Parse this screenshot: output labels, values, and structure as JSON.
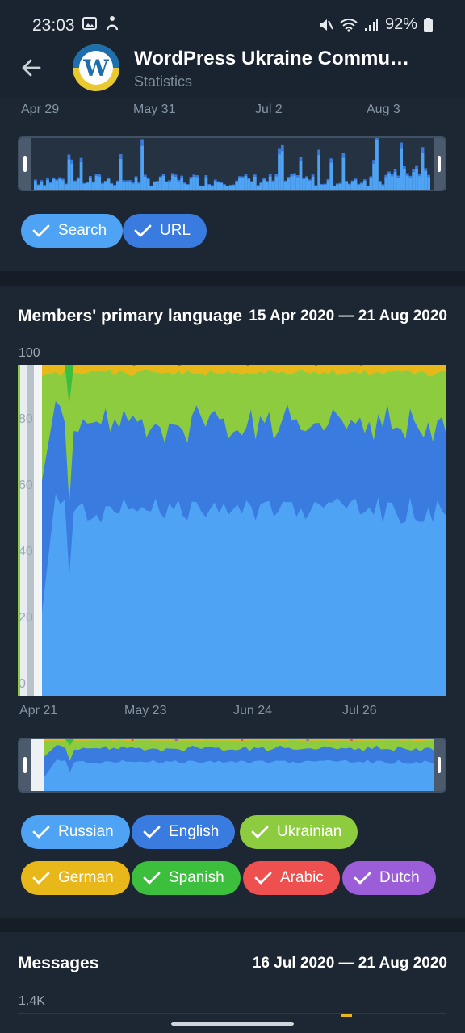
{
  "status_bar": {
    "time": "23:03",
    "battery": "92%"
  },
  "header": {
    "title": "WordPress Ukraine Commu…",
    "subtitle": "Statistics"
  },
  "views_card": {
    "x_labels": [
      "Apr 29",
      "May 31",
      "Jul 2",
      "Aug 3"
    ],
    "chips": [
      {
        "label": "Search",
        "color": "#4ea3f5"
      },
      {
        "label": "URL",
        "color": "#3a7be0"
      }
    ]
  },
  "languages_card": {
    "title": "Members' primary language",
    "range": "15 Apr 2020 — 21 Aug 2020",
    "y_ticks": [
      "100",
      "80",
      "60",
      "40",
      "20",
      "0"
    ],
    "x_labels": [
      "Apr 21",
      "May 23",
      "Jun 24",
      "Jul 26"
    ],
    "chips": [
      {
        "label": "Russian",
        "color": "#4ea3f5"
      },
      {
        "label": "English",
        "color": "#3a7be0"
      },
      {
        "label": "Ukrainian",
        "color": "#8dcc3e"
      },
      {
        "label": "German",
        "color": "#e8b81a"
      },
      {
        "label": "Spanish",
        "color": "#3cbf3c"
      },
      {
        "label": "Arabic",
        "color": "#ee5050"
      },
      {
        "label": "Dutch",
        "color": "#9b5ed8"
      }
    ]
  },
  "messages_card": {
    "title": "Messages",
    "range": "16 Jul 2020 — 21 Aug 2020",
    "y_tick_top": "1.4K"
  },
  "chart_data": {
    "type": "area",
    "title": "Members' primary language",
    "stacked_percent": true,
    "ylim": [
      0,
      100
    ],
    "y_ticks": [
      0,
      20,
      40,
      60,
      80,
      100
    ],
    "x_ticks": [
      "Apr 21",
      "May 23",
      "Jun 24",
      "Jul 26"
    ],
    "series": [
      {
        "name": "Russian",
        "color": "#4ea3f5",
        "approx_share": 54
      },
      {
        "name": "English",
        "color": "#3a7be0",
        "approx_share": 26
      },
      {
        "name": "Ukrainian",
        "color": "#8dcc3e",
        "approx_share": 18
      },
      {
        "name": "German",
        "color": "#e8b81a",
        "approx_share": 1
      },
      {
        "name": "Spanish",
        "color": "#3cbf3c",
        "approx_share": 0.5
      },
      {
        "name": "Arabic",
        "color": "#ee5050",
        "approx_share": 0.3
      },
      {
        "name": "Dutch",
        "color": "#9b5ed8",
        "approx_share": 0.2
      }
    ]
  }
}
